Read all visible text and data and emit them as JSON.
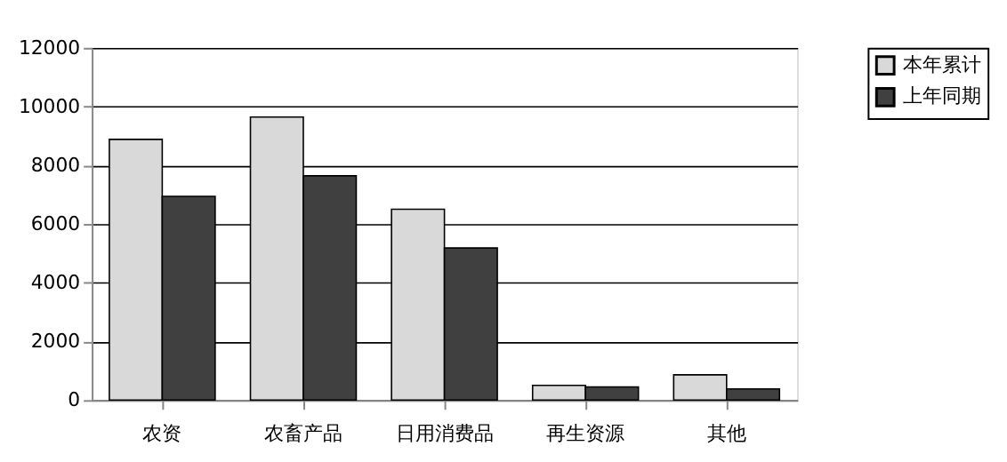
{
  "chart_data": {
    "type": "bar",
    "categories": [
      "农资",
      "农畜产品",
      "日用消费品",
      "再生资源",
      "其他"
    ],
    "series": [
      {
        "name": "本年累计",
        "color": "#d9d9d9",
        "values": [
          8880,
          9640,
          6500,
          500,
          860
        ]
      },
      {
        "name": "上年同期",
        "color": "#404040",
        "values": [
          6940,
          7640,
          5180,
          450,
          380
        ]
      }
    ],
    "ylim": [
      0,
      12000
    ],
    "yticks": [
      0,
      2000,
      4000,
      6000,
      8000,
      10000,
      12000
    ],
    "grid": "y",
    "legend": "right"
  }
}
